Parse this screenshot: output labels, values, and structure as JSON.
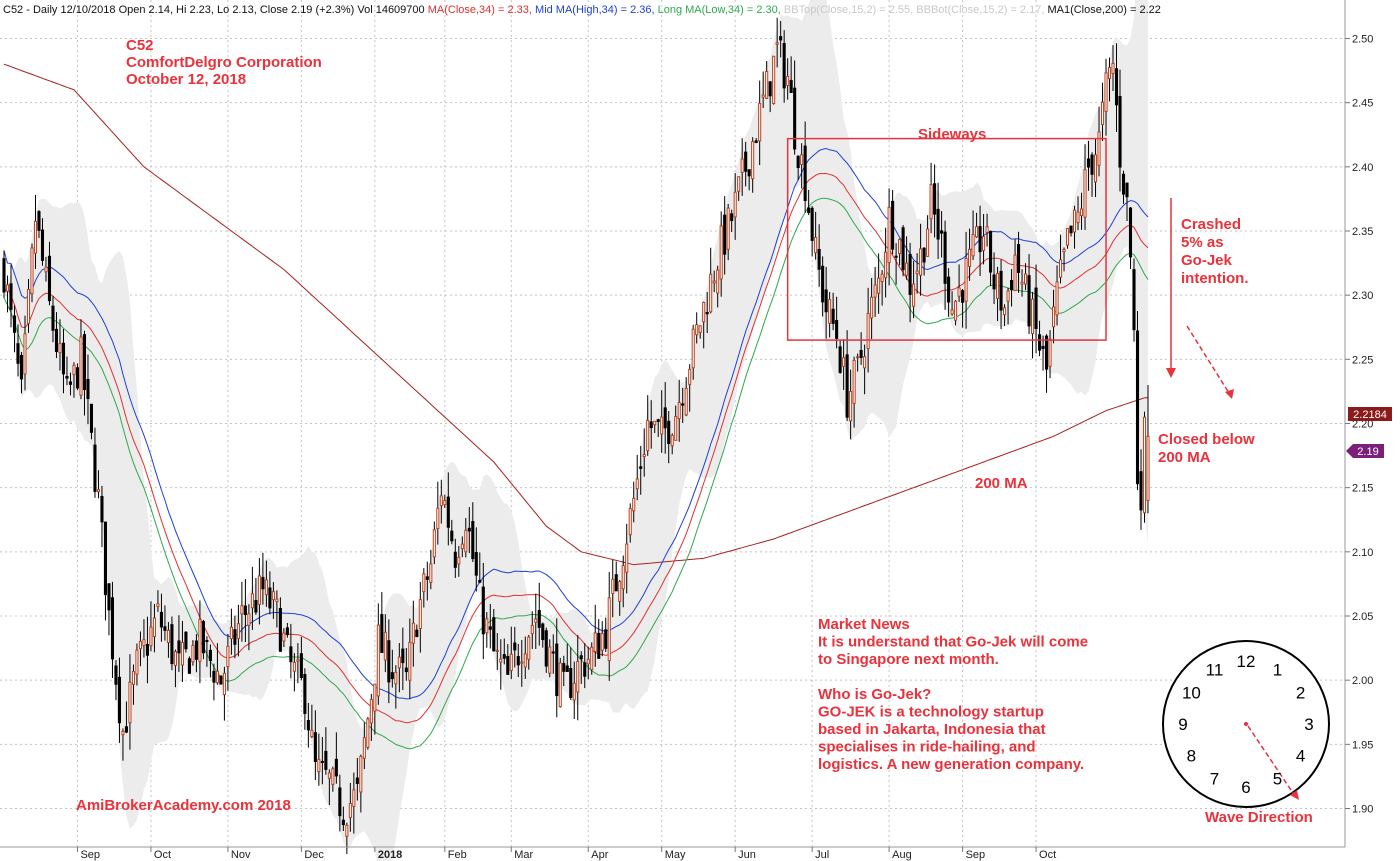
{
  "header": {
    "parts": [
      {
        "text": "C52 - Daily 12/10/2018 Open 2.14, Hi 2.23, Lo 2.13, Close 2.19 (+2.3%) Vol 14609700",
        "color": "#111111"
      },
      {
        "text": "MA(Close,34) = 2.33,",
        "color": "#e03030"
      },
      {
        "text": "Mid MA(High,34) = 2.36,",
        "color": "#1f3fd6"
      },
      {
        "text": "Long MA(Low,34) = 2.30,",
        "color": "#2fa84f"
      },
      {
        "text": "BBTop(Close,15,2) = 2.55,",
        "color": "#c8c8c8"
      },
      {
        "text": "BBBot(Close,15,2) = 2.17,",
        "color": "#c8c8c8"
      },
      {
        "text": "MA1(Close,200) = 2.22",
        "color": "#111111"
      }
    ]
  },
  "annotations": {
    "title_lines": [
      "C52",
      "ComfortDelgro Corporation",
      "October 12, 2018"
    ],
    "sideways": "Sideways",
    "crashed_lines": [
      "Crashed",
      "5% as",
      "Go-Jek",
      "intention."
    ],
    "closed_lines": [
      "Closed below",
      "200 MA"
    ],
    "ma200_label": "200 MA",
    "news_lines": [
      "Market News",
      "It is understand that Go-Jek will come",
      "to Singapore next month.",
      "",
      "Who is Go-Jek?",
      "GO-JEK is a technology startup",
      "based in Jakarta, Indonesia that",
      "specialises in ride-hailing, and",
      "logistics. A new generation company."
    ],
    "watermark": "AmiBrokerAcademy.com  2018",
    "wave_direction": "Wave Direction",
    "clock_numbers": [
      "12",
      "1",
      "2",
      "3",
      "4",
      "5",
      "6",
      "7",
      "8",
      "9",
      "10",
      "11"
    ]
  },
  "colors": {
    "candle_up": "#b8421f",
    "candle_down": "#000000",
    "ma34_close": "#e03030",
    "ma34_high": "#1f3fd6",
    "ma34_low": "#2fa84f",
    "ma200": "#a82020",
    "bband_fill": "#ececec",
    "annotation": "#e8323c",
    "marker_ma200": "#8b1a1a",
    "marker_close": "#7b1f7b"
  },
  "markers": {
    "ma200_value": "2.2184",
    "close_value": "2.19"
  },
  "chart_data": {
    "type": "candlestick",
    "symbol": "C52",
    "title": "",
    "y_ticks": [
      "2.50",
      "2.45",
      "2.40",
      "2.35",
      "2.30",
      "2.25",
      "2.20",
      "2.15",
      "2.10",
      "2.05",
      "2.00",
      "1.95",
      "1.90"
    ],
    "ylim": [
      1.87,
      2.53
    ],
    "x_tick_labels": [
      "Sep",
      "Oct",
      "Nov",
      "Dec",
      "2018",
      "Feb",
      "Mar",
      "Apr",
      "May",
      "Jun",
      "Jul",
      "Aug",
      "Sep",
      "Oct"
    ],
    "x_tick_positions": [
      21,
      42,
      64,
      85,
      106,
      126,
      145,
      167,
      188,
      209,
      231,
      253,
      274,
      295
    ],
    "x_range": [
      0,
      327
    ],
    "grid": true,
    "sideways_range": [
      2.265,
      2.422
    ],
    "sideways_days": [
      224,
      315
    ],
    "price_anchors": [
      [
        0,
        2.32
      ],
      [
        5,
        2.22
      ],
      [
        9,
        2.36
      ],
      [
        13,
        2.29
      ],
      [
        18,
        2.22
      ],
      [
        22,
        2.25
      ],
      [
        27,
        2.14
      ],
      [
        30,
        2.05
      ],
      [
        34,
        1.96
      ],
      [
        38,
        2.01
      ],
      [
        44,
        2.05
      ],
      [
        50,
        2.01
      ],
      [
        56,
        2.03
      ],
      [
        62,
        2.0
      ],
      [
        68,
        2.05
      ],
      [
        74,
        2.07
      ],
      [
        78,
        2.05
      ],
      [
        82,
        2.01
      ],
      [
        86,
        1.99
      ],
      [
        89,
        1.93
      ],
      [
        93,
        1.92
      ],
      [
        97,
        1.9
      ],
      [
        101,
        1.91
      ],
      [
        104,
        1.97
      ],
      [
        107,
        2.03
      ],
      [
        111,
        2.01
      ],
      [
        115,
        2.0
      ],
      [
        118,
        2.05
      ],
      [
        122,
        2.09
      ],
      [
        125,
        2.15
      ],
      [
        129,
        2.1
      ],
      [
        132,
        2.13
      ],
      [
        136,
        2.06
      ],
      [
        140,
        2.02
      ],
      [
        144,
        2.0
      ],
      [
        148,
        2.03
      ],
      [
        152,
        2.05
      ],
      [
        156,
        2.02
      ],
      [
        160,
        1.99
      ],
      [
        164,
        2.01
      ],
      [
        168,
        2.02
      ],
      [
        172,
        2.04
      ],
      [
        176,
        2.09
      ],
      [
        180,
        2.14
      ],
      [
        184,
        2.2
      ],
      [
        188,
        2.19
      ],
      [
        192,
        2.21
      ],
      [
        196,
        2.25
      ],
      [
        200,
        2.29
      ],
      [
        204,
        2.33
      ],
      [
        208,
        2.36
      ],
      [
        211,
        2.39
      ],
      [
        214,
        2.42
      ],
      [
        218,
        2.46
      ],
      [
        221,
        2.49
      ],
      [
        224,
        2.47
      ],
      [
        226,
        2.43
      ],
      [
        229,
        2.39
      ],
      [
        232,
        2.33
      ],
      [
        235,
        2.29
      ],
      [
        238,
        2.27
      ],
      [
        241,
        2.22
      ],
      [
        244,
        2.24
      ],
      [
        247,
        2.28
      ],
      [
        250,
        2.31
      ],
      [
        253,
        2.36
      ],
      [
        256,
        2.34
      ],
      [
        259,
        2.31
      ],
      [
        262,
        2.33
      ],
      [
        265,
        2.37
      ],
      [
        268,
        2.34
      ],
      [
        271,
        2.29
      ],
      [
        274,
        2.31
      ],
      [
        277,
        2.33
      ],
      [
        280,
        2.35
      ],
      [
        283,
        2.31
      ],
      [
        286,
        2.29
      ],
      [
        289,
        2.33
      ],
      [
        292,
        2.3
      ],
      [
        295,
        2.27
      ],
      [
        298,
        2.24
      ],
      [
        301,
        2.3
      ],
      [
        304,
        2.34
      ],
      [
        307,
        2.36
      ],
      [
        310,
        2.4
      ],
      [
        313,
        2.42
      ],
      [
        315,
        2.46
      ],
      [
        317,
        2.48
      ],
      [
        319,
        2.41
      ],
      [
        321,
        2.37
      ],
      [
        322,
        2.33
      ],
      [
        323,
        2.27
      ],
      [
        324,
        2.16
      ],
      [
        325,
        2.15
      ],
      [
        326,
        2.19
      ]
    ],
    "ma200_anchors": [
      [
        0,
        2.48
      ],
      [
        20,
        2.46
      ],
      [
        40,
        2.4
      ],
      [
        60,
        2.36
      ],
      [
        80,
        2.32
      ],
      [
        100,
        2.27
      ],
      [
        120,
        2.22
      ],
      [
        140,
        2.17
      ],
      [
        155,
        2.12
      ],
      [
        165,
        2.1
      ],
      [
        180,
        2.09
      ],
      [
        200,
        2.095
      ],
      [
        220,
        2.11
      ],
      [
        240,
        2.13
      ],
      [
        260,
        2.15
      ],
      [
        280,
        2.17
      ],
      [
        300,
        2.19
      ],
      [
        315,
        2.21
      ],
      [
        326,
        2.22
      ]
    ]
  }
}
